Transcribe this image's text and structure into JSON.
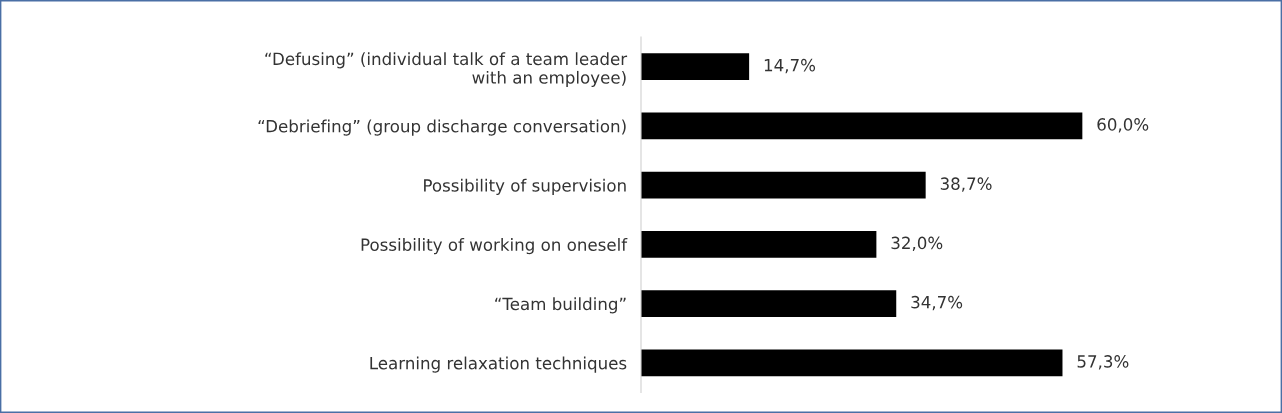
{
  "chart_data": {
    "type": "bar",
    "orientation": "horizontal",
    "categories": [
      "“Defusing” (individual talk of a team leader\nwith an employee)",
      "“Debriefing” (group discharge conversation)",
      "Possibility of supervision",
      "Possibility of working on oneself",
      "“Team building”",
      "Learning relaxation techniques"
    ],
    "values": [
      14.7,
      60.0,
      38.7,
      32.0,
      34.7,
      57.3
    ],
    "value_labels": [
      "14,7%",
      "60,0%",
      "38,7%",
      "32,0%",
      "34,7%",
      "57,3%"
    ],
    "color": "#000000",
    "grid": false,
    "legend": false
  }
}
